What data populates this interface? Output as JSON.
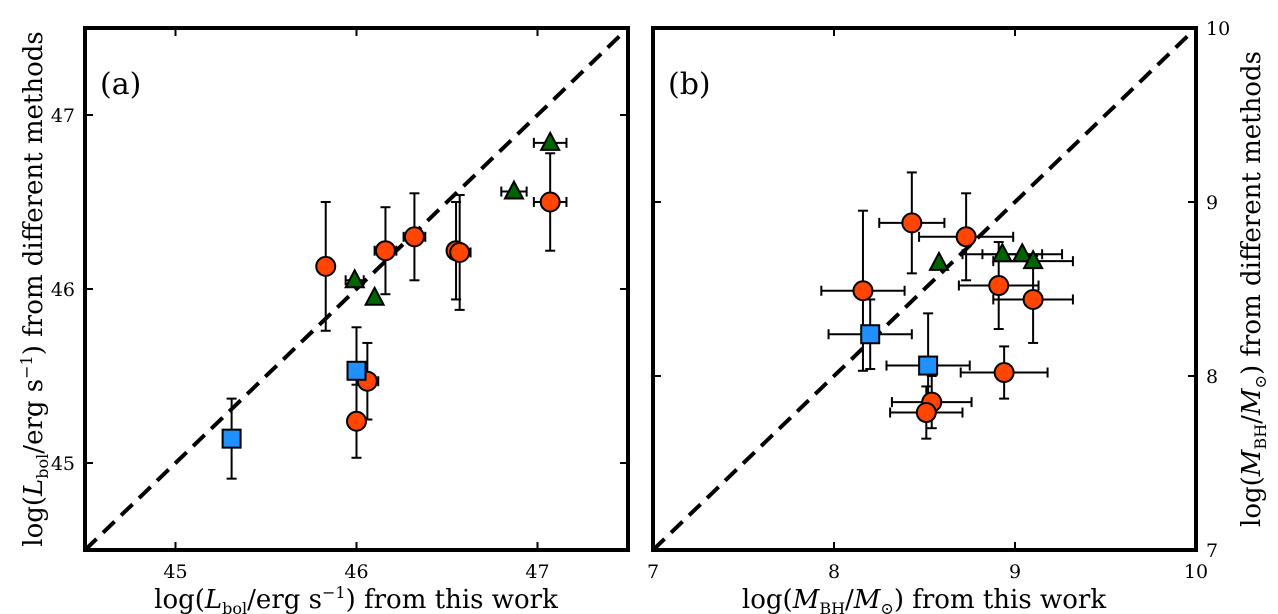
{
  "chart_data": [
    {
      "type": "scatter",
      "panel_label": "(a)",
      "title": "",
      "xlabel": "log(L_bol/erg s^-1) from this work",
      "ylabel": "log(L_bol/erg s^-1) from different methods",
      "xlim": [
        44.5,
        47.5
      ],
      "ylim": [
        44.5,
        47.5
      ],
      "xticks": [
        45,
        46,
        47
      ],
      "yticks": [
        45,
        46,
        47
      ],
      "reference_line": {
        "style": "dashed",
        "slope": 1,
        "intercept": 0
      },
      "series": [
        {
          "marker": "circle",
          "color": "#ff4500",
          "points": [
            {
              "x": 45.83,
              "y": 46.13,
              "xerr": 0.0,
              "yerr": 0.37
            },
            {
              "x": 46.16,
              "y": 46.22,
              "xerr": 0.06,
              "yerr": 0.25
            },
            {
              "x": 46.32,
              "y": 46.3,
              "xerr": 0.06,
              "yerr": 0.25
            },
            {
              "x": 46.55,
              "y": 46.22,
              "xerr": 0.0,
              "yerr": 0.28
            },
            {
              "x": 46.57,
              "y": 46.21,
              "xerr": 0.06,
              "yerr": 0.33
            },
            {
              "x": 47.07,
              "y": 46.5,
              "xerr": 0.09,
              "yerr": 0.28
            },
            {
              "x": 46.06,
              "y": 45.47,
              "xerr": 0.06,
              "yerr": 0.22
            },
            {
              "x": 46.0,
              "y": 45.24,
              "xerr": 0.0,
              "yerr": 0.21
            }
          ]
        },
        {
          "marker": "square",
          "color": "#1e90ff",
          "points": [
            {
              "x": 45.31,
              "y": 45.14,
              "xerr": 0.0,
              "yerr": 0.23
            },
            {
              "x": 46.0,
              "y": 45.53,
              "xerr": 0.0,
              "yerr": 0.25
            }
          ]
        },
        {
          "marker": "triangle",
          "color": "#006400",
          "points": [
            {
              "x": 45.99,
              "y": 46.05,
              "xerr": 0.05,
              "yerr": 0.0
            },
            {
              "x": 46.1,
              "y": 45.95,
              "xerr": 0.0,
              "yerr": 0.0
            },
            {
              "x": 46.87,
              "y": 46.56,
              "xerr": 0.07,
              "yerr": 0.0
            },
            {
              "x": 47.07,
              "y": 46.84,
              "xerr": 0.09,
              "yerr": 0.0
            }
          ]
        }
      ]
    },
    {
      "type": "scatter",
      "panel_label": "(b)",
      "title": "",
      "xlabel": "log(M_BH/M_sun) from this work",
      "ylabel": "log(M_BH/M_sun) from different methods",
      "xlim": [
        7,
        10
      ],
      "ylim": [
        7,
        10
      ],
      "xticks": [
        7,
        8,
        9,
        10
      ],
      "yticks": [
        7,
        8,
        9,
        10
      ],
      "reference_line": {
        "style": "dashed",
        "slope": 1,
        "intercept": 0
      },
      "series": [
        {
          "marker": "circle",
          "color": "#ff4500",
          "points": [
            {
              "x": 8.16,
              "y": 8.49,
              "xerr": 0.23,
              "yerr": 0.46
            },
            {
              "x": 8.43,
              "y": 8.88,
              "xerr": 0.18,
              "yerr": 0.29
            },
            {
              "x": 8.73,
              "y": 8.8,
              "xerr": 0.26,
              "yerr": 0.25
            },
            {
              "x": 8.91,
              "y": 8.52,
              "xerr": 0.22,
              "yerr": 0.25
            },
            {
              "x": 9.1,
              "y": 8.44,
              "xerr": 0.22,
              "yerr": 0.25
            },
            {
              "x": 8.94,
              "y": 8.02,
              "xerr": 0.24,
              "yerr": 0.15
            },
            {
              "x": 8.54,
              "y": 7.85,
              "xerr": 0.22,
              "yerr": 0.15
            },
            {
              "x": 8.51,
              "y": 7.79,
              "xerr": 0.2,
              "yerr": 0.15
            }
          ]
        },
        {
          "marker": "square",
          "color": "#1e90ff",
          "points": [
            {
              "x": 8.2,
              "y": 8.24,
              "xerr": 0.23,
              "yerr": 0.2
            },
            {
              "x": 8.52,
              "y": 8.06,
              "xerr": 0.23,
              "yerr": 0.3
            }
          ]
        },
        {
          "marker": "triangle",
          "color": "#006400",
          "points": [
            {
              "x": 8.58,
              "y": 8.65,
              "xerr": 0.0,
              "yerr": 0.0
            },
            {
              "x": 8.93,
              "y": 8.7,
              "xerr": 0.22,
              "yerr": 0.0
            },
            {
              "x": 9.04,
              "y": 8.7,
              "xerr": 0.22,
              "yerr": 0.0
            },
            {
              "x": 9.1,
              "y": 8.66,
              "xerr": 0.22,
              "yerr": 0.0
            }
          ]
        }
      ]
    }
  ]
}
